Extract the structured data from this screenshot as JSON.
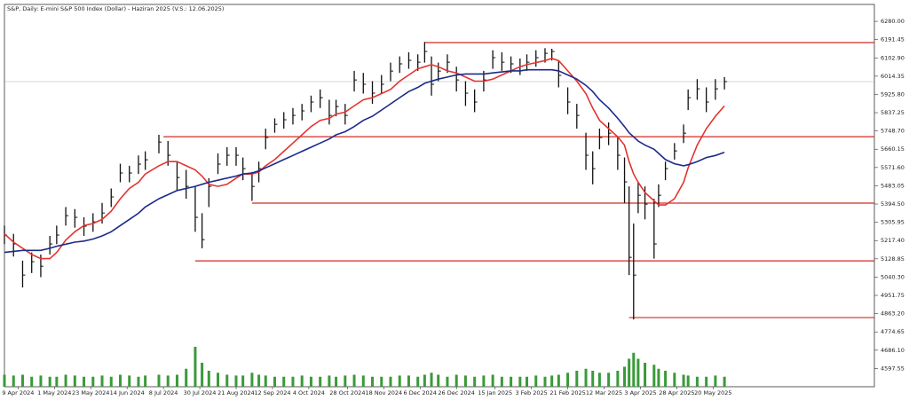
{
  "chart_data": {
    "type": "hlc",
    "title": "S&P, Daily: E-mini S&P 500 Index (Dollar) - Haziran 2025 (V.S.: 12.06.2025)",
    "x": [
      0,
      4,
      8,
      12,
      16,
      20,
      23,
      27,
      31,
      35,
      39,
      43,
      47,
      51,
      55,
      59,
      62,
      68,
      72,
      76,
      80,
      84,
      87,
      90,
      94,
      98,
      102,
      105,
      109,
      112,
      115,
      119,
      123,
      127,
      131,
      135,
      139,
      143,
      146,
      150,
      154,
      158,
      162,
      166,
      170,
      174,
      178,
      182,
      185,
      188,
      191,
      195,
      199,
      203,
      207,
      211,
      215,
      219,
      223,
      227,
      230,
      234,
      238,
      241,
      244,
      248,
      252,
      256,
      259,
      262,
      266,
      270,
      273,
      275,
      277,
      279,
      282,
      286,
      288,
      291,
      295,
      299,
      301,
      305,
      309,
      313,
      317
    ],
    "high": [
      5290,
      5250,
      5120,
      5160,
      5150,
      5240,
      5290,
      5380,
      5370,
      5330,
      5350,
      5400,
      5470,
      5590,
      5580,
      5630,
      5650,
      5730,
      5700,
      5600,
      5560,
      5480,
      5350,
      5520,
      5640,
      5670,
      5670,
      5620,
      5550,
      5600,
      5760,
      5810,
      5840,
      5860,
      5880,
      5920,
      5950,
      5900,
      5900,
      5880,
      6040,
      6030,
      5990,
      6020,
      6080,
      6110,
      6130,
      6120,
      6180,
      6110,
      6080,
      6120,
      6060,
      5990,
      5950,
      6040,
      6140,
      6130,
      6110,
      6100,
      6120,
      6140,
      6150,
      6147,
      6090,
      5960,
      5880,
      5740,
      5650,
      5760,
      5790,
      5720,
      5620,
      5480,
      5300,
      5500,
      5480,
      5420,
      5490,
      5600,
      5690,
      5780,
      5950,
      6000,
      5960,
      6000,
      6010
    ],
    "low": [
      5200,
      5140,
      4990,
      5060,
      5040,
      5150,
      5200,
      5290,
      5280,
      5240,
      5260,
      5300,
      5380,
      5500,
      5500,
      5540,
      5560,
      5640,
      5580,
      5460,
      5420,
      5260,
      5180,
      5380,
      5540,
      5580,
      5580,
      5510,
      5410,
      5500,
      5660,
      5740,
      5760,
      5780,
      5800,
      5840,
      5860,
      5780,
      5820,
      5780,
      5940,
      5930,
      5880,
      5930,
      5990,
      6030,
      6050,
      6040,
      6080,
      5920,
      5990,
      6030,
      5940,
      5870,
      5840,
      5940,
      6050,
      6040,
      6030,
      6020,
      6040,
      6060,
      6080,
      6090,
      5960,
      5830,
      5760,
      5560,
      5490,
      5660,
      5680,
      5560,
      5400,
      5050,
      4835,
      5350,
      5320,
      5130,
      5380,
      5510,
      5610,
      5690,
      5850,
      5900,
      5840,
      5900,
      5950
    ],
    "close": [
      5244,
      5201,
      5050,
      5115,
      5093,
      5201,
      5244,
      5338,
      5330,
      5287,
      5308,
      5351,
      5429,
      5545,
      5545,
      5588,
      5609,
      5695,
      5631,
      5523,
      5480,
      5330,
      5222,
      5480,
      5588,
      5631,
      5631,
      5566,
      5480,
      5566,
      5717,
      5781,
      5803,
      5824,
      5846,
      5889,
      5910,
      5824,
      5867,
      5824,
      5996,
      5975,
      5932,
      5975,
      6039,
      6074,
      6091,
      6082,
      6134,
      5975,
      6039,
      6082,
      5996,
      5932,
      5889,
      5996,
      6104,
      6082,
      6074,
      6061,
      6082,
      6104,
      6125,
      6134,
      6018,
      5889,
      5824,
      5631,
      5566,
      5717,
      5738,
      5631,
      5502,
      5136,
      5050,
      5437,
      5394,
      5201,
      5437,
      5566,
      5652,
      5738,
      5910,
      5953,
      5889,
      5953,
      5988
    ],
    "color": "#111111",
    "moving_averages": [
      {
        "color": "#e3342f",
        "values": [
          5250,
          5210,
          5180,
          5150,
          5130,
          5130,
          5160,
          5220,
          5260,
          5290,
          5300,
          5320,
          5360,
          5420,
          5470,
          5500,
          5540,
          5580,
          5600,
          5600,
          5580,
          5560,
          5530,
          5490,
          5480,
          5490,
          5520,
          5540,
          5540,
          5550,
          5580,
          5610,
          5650,
          5690,
          5730,
          5770,
          5800,
          5810,
          5830,
          5840,
          5870,
          5900,
          5910,
          5930,
          5950,
          5990,
          6020,
          6050,
          6060,
          6070,
          6060,
          6040,
          6030,
          6010,
          5990,
          5990,
          6000,
          6020,
          6040,
          6060,
          6070,
          6080,
          6090,
          6100,
          6090,
          6040,
          5990,
          5930,
          5860,
          5800,
          5760,
          5720,
          5680,
          5600,
          5540,
          5500,
          5450,
          5410,
          5390,
          5390,
          5420,
          5500,
          5570,
          5680,
          5760,
          5820,
          5870
        ]
      },
      {
        "color": "#1c2a8a",
        "values": [
          5160,
          5165,
          5170,
          5170,
          5170,
          5180,
          5190,
          5200,
          5210,
          5215,
          5225,
          5240,
          5260,
          5290,
          5320,
          5350,
          5380,
          5420,
          5440,
          5460,
          5470,
          5480,
          5490,
          5500,
          5510,
          5520,
          5530,
          5540,
          5545,
          5555,
          5570,
          5590,
          5610,
          5630,
          5650,
          5670,
          5690,
          5710,
          5730,
          5745,
          5770,
          5800,
          5820,
          5850,
          5880,
          5910,
          5940,
          5960,
          5980,
          5990,
          6000,
          6010,
          6020,
          6025,
          6025,
          6025,
          6030,
          6035,
          6040,
          6040,
          6045,
          6045,
          6045,
          6045,
          6040,
          6020,
          6000,
          5970,
          5940,
          5900,
          5860,
          5810,
          5770,
          5740,
          5720,
          5700,
          5680,
          5660,
          5640,
          5610,
          5590,
          5580,
          5585,
          5600,
          5620,
          5630,
          5645
        ]
      }
    ],
    "volume": {
      "color": "#3a9a3a",
      "ylim": [
        0,
        100
      ],
      "values": [
        30,
        28,
        30,
        25,
        28,
        25,
        25,
        30,
        28,
        25,
        25,
        28,
        25,
        30,
        28,
        25,
        28,
        30,
        28,
        30,
        45,
        100,
        60,
        40,
        35,
        30,
        28,
        28,
        35,
        30,
        28,
        25,
        25,
        25,
        28,
        25,
        25,
        28,
        25,
        28,
        30,
        28,
        25,
        25,
        25,
        28,
        28,
        25,
        30,
        35,
        30,
        25,
        30,
        28,
        25,
        28,
        30,
        25,
        25,
        25,
        25,
        28,
        25,
        28,
        30,
        35,
        40,
        45,
        40,
        35,
        35,
        40,
        50,
        70,
        85,
        70,
        60,
        55,
        45,
        40,
        35,
        30,
        28,
        25,
        25,
        28,
        25
      ]
    },
    "levels": {
      "color": "#d22a22",
      "items": [
        {
          "value": 6177,
          "from": 185
        },
        {
          "value": 5721,
          "from": 70
        },
        {
          "value": 5399,
          "from": 109
        },
        {
          "value": 5119,
          "from": 84
        },
        {
          "value": 4844,
          "from": 275
        }
      ]
    },
    "xlim": [
      0,
      383
    ],
    "xticks": [
      {
        "value": 6,
        "label": "9 Apr 2024"
      },
      {
        "value": 22,
        "label": "1 May 2024"
      },
      {
        "value": 38,
        "label": "23 May 2024"
      },
      {
        "value": 54,
        "label": "14 Jun 2024"
      },
      {
        "value": 70,
        "label": "8 Jul 2024"
      },
      {
        "value": 86,
        "label": "30 Jul 2024"
      },
      {
        "value": 102,
        "label": "21 Aug 2024"
      },
      {
        "value": 118,
        "label": "12 Sep 2024"
      },
      {
        "value": 134,
        "label": "4 Oct 2024"
      },
      {
        "value": 151,
        "label": "28 Oct 2024"
      },
      {
        "value": 167,
        "label": "18 Nov 2024"
      },
      {
        "value": 183,
        "label": "6 Dec 2024"
      },
      {
        "value": 199,
        "label": "26 Dec 2024"
      },
      {
        "value": 216,
        "label": "15 Jan 2025"
      },
      {
        "value": 232,
        "label": "3 Feb 2025"
      },
      {
        "value": 248,
        "label": "21 Feb 2025"
      },
      {
        "value": 264,
        "label": "12 Mar 2025"
      },
      {
        "value": 280,
        "label": "3 Apr 2025"
      },
      {
        "value": 296,
        "label": "28 Apr 2025"
      },
      {
        "value": 312,
        "label": "20 May 2025"
      }
    ],
    "ylim": [
      4509,
      6362
    ],
    "yticks": [
      {
        "value": 6280,
        "label": "6280.00"
      },
      {
        "value": 6191.45,
        "label": "6191.45"
      },
      {
        "value": 6102.9,
        "label": "6102.90"
      },
      {
        "value": 6014.35,
        "label": "6014.35"
      },
      {
        "value": 5925.8,
        "label": "5925.80"
      },
      {
        "value": 5837.25,
        "label": "5837.25"
      },
      {
        "value": 5748.7,
        "label": "5748.70"
      },
      {
        "value": 5660.15,
        "label": "5660.15"
      },
      {
        "value": 5571.6,
        "label": "5571.60"
      },
      {
        "value": 5483.05,
        "label": "5483.05"
      },
      {
        "value": 5394.5,
        "label": "5394.50"
      },
      {
        "value": 5305.95,
        "label": "5305.95"
      },
      {
        "value": 5217.4,
        "label": "5217.40"
      },
      {
        "value": 5128.85,
        "label": "5128.85"
      },
      {
        "value": 5040.3,
        "label": "5040.30"
      },
      {
        "value": 4951.75,
        "label": "4951.75"
      },
      {
        "value": 4863.2,
        "label": "4863.20"
      },
      {
        "value": 4774.65,
        "label": "4774.65"
      },
      {
        "value": 4686.1,
        "label": "4686.10"
      },
      {
        "value": 4597.55,
        "label": "4597.55"
      }
    ]
  }
}
